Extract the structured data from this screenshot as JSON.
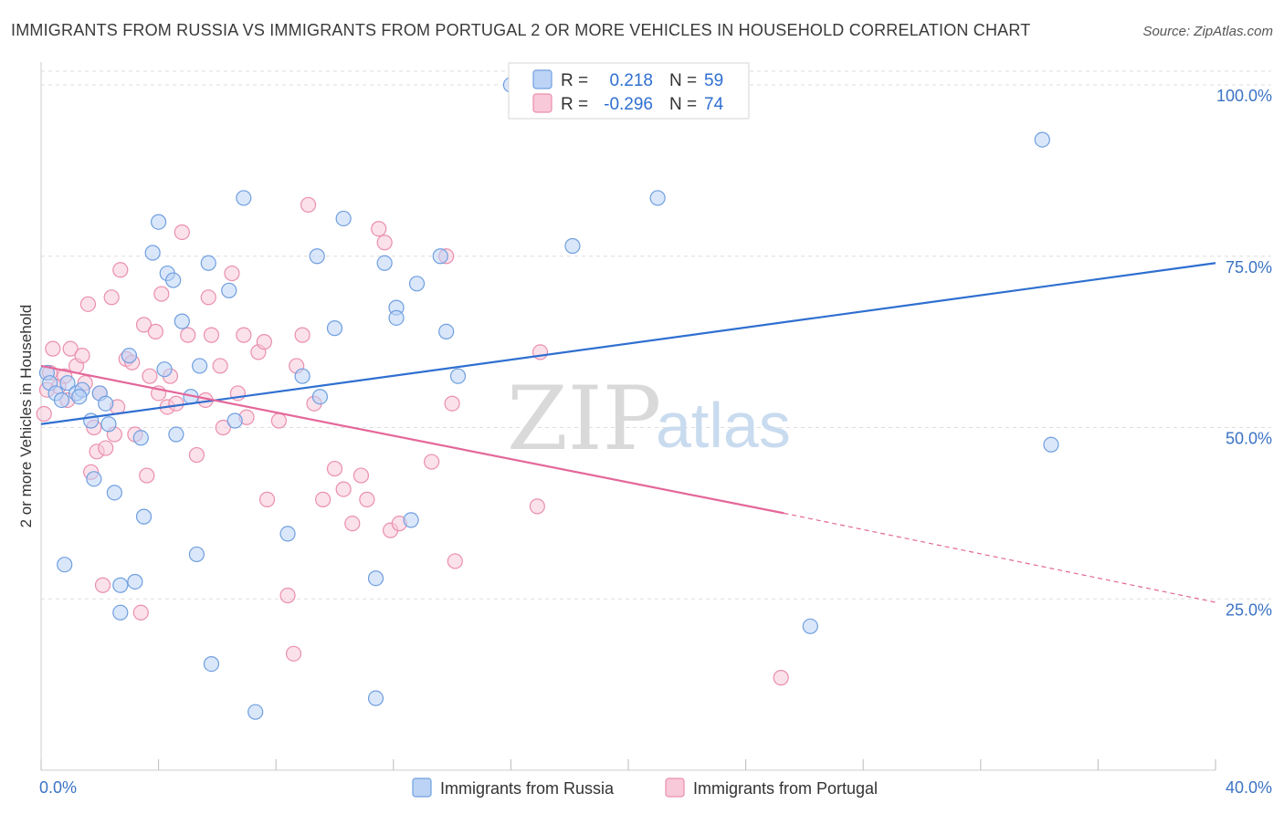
{
  "header": {
    "title": "IMMIGRANTS FROM RUSSIA VS IMMIGRANTS FROM PORTUGAL 2 OR MORE VEHICLES IN HOUSEHOLD CORRELATION CHART",
    "source": "Source: ZipAtlas.com"
  },
  "watermark": {
    "zip": "ZIP",
    "atlas": "atlas"
  },
  "stats": {
    "russia": {
      "r_label": "R =",
      "r_value": "0.218",
      "n_label": "N =",
      "n_value": "59"
    },
    "portugal": {
      "r_label": "R =",
      "r_value": "-0.296",
      "n_label": "N =",
      "n_value": "74"
    }
  },
  "colors": {
    "russia_fill": "#bcd3f5",
    "russia_stroke": "#6f9fe0",
    "russia_line": "#2f6fd0",
    "portugal_fill": "#f8c9d8",
    "portugal_stroke": "#ea8fae",
    "portugal_line": "#e4679a",
    "grid": "#dddddd",
    "axis_text": "#3b73c4"
  },
  "chart_data": {
    "type": "scatter",
    "title": "IMMIGRANTS FROM RUSSIA VS IMMIGRANTS FROM PORTUGAL 2 OR MORE VEHICLES IN HOUSEHOLD CORRELATION CHART",
    "xlabel": "",
    "ylabel": "2 or more Vehicles in Household",
    "xlim": [
      0,
      40
    ],
    "ylim": [
      0,
      102
    ],
    "x_ticks": [
      "0.0%",
      "40.0%"
    ],
    "y_ticks": [
      {
        "value": 100,
        "label": "100.0%"
      },
      {
        "value": 75,
        "label": "75.0%"
      },
      {
        "value": 50,
        "label": "50.0%"
      },
      {
        "value": 25,
        "label": "25.0%"
      }
    ],
    "grid": true,
    "legend_position": "bottom-center",
    "series": [
      {
        "name": "Immigrants from Russia",
        "r": 0.218,
        "n": 59,
        "trend": {
          "x": [
            0,
            40
          ],
          "y": [
            50.5,
            74.0
          ],
          "dashed_from": null
        },
        "points": [
          [
            16.0,
            100.0
          ],
          [
            0.2,
            58.0
          ],
          [
            0.3,
            56.5
          ],
          [
            0.5,
            55.0
          ],
          [
            0.7,
            54.0
          ],
          [
            0.9,
            56.5
          ],
          [
            1.2,
            55.0
          ],
          [
            1.4,
            55.5
          ],
          [
            1.7,
            51.0
          ],
          [
            1.8,
            42.5
          ],
          [
            2.0,
            55.0
          ],
          [
            2.2,
            53.5
          ],
          [
            2.3,
            50.5
          ],
          [
            2.5,
            40.5
          ],
          [
            2.7,
            27.0
          ],
          [
            2.7,
            23.0
          ],
          [
            3.0,
            60.5
          ],
          [
            3.2,
            27.5
          ],
          [
            3.4,
            48.5
          ],
          [
            3.5,
            37.0
          ],
          [
            3.8,
            75.5
          ],
          [
            4.0,
            80.0
          ],
          [
            4.2,
            58.5
          ],
          [
            4.3,
            72.5
          ],
          [
            4.5,
            71.5
          ],
          [
            4.6,
            49.0
          ],
          [
            4.8,
            65.5
          ],
          [
            5.1,
            54.5
          ],
          [
            5.3,
            31.5
          ],
          [
            5.4,
            59.0
          ],
          [
            5.7,
            74.0
          ],
          [
            5.8,
            15.5
          ],
          [
            6.4,
            70.0
          ],
          [
            6.6,
            51.0
          ],
          [
            6.9,
            83.5
          ],
          [
            7.3,
            8.5
          ],
          [
            8.4,
            34.5
          ],
          [
            8.9,
            57.5
          ],
          [
            9.4,
            75.0
          ],
          [
            9.5,
            54.5
          ],
          [
            10.0,
            64.5
          ],
          [
            10.3,
            80.5
          ],
          [
            11.4,
            28.0
          ],
          [
            11.4,
            10.5
          ],
          [
            11.7,
            74.0
          ],
          [
            12.1,
            67.5
          ],
          [
            12.1,
            66.0
          ],
          [
            12.6,
            36.5
          ],
          [
            12.8,
            71.0
          ],
          [
            13.6,
            75.0
          ],
          [
            13.8,
            64.0
          ],
          [
            14.2,
            57.5
          ],
          [
            18.1,
            76.5
          ],
          [
            21.0,
            83.5
          ],
          [
            26.2,
            21.0
          ],
          [
            34.1,
            92.0
          ],
          [
            34.4,
            47.5
          ],
          [
            0.8,
            30.0
          ],
          [
            1.3,
            54.5
          ]
        ]
      },
      {
        "name": "Immigrants from Portugal",
        "r": -0.296,
        "n": 74,
        "trend": {
          "x": [
            0,
            25.3,
            40
          ],
          "y": [
            59.0,
            37.5,
            24.5
          ],
          "dashed_from": 25.3
        },
        "points": [
          [
            0.1,
            52.0
          ],
          [
            0.3,
            58.0
          ],
          [
            0.4,
            61.5
          ],
          [
            0.6,
            56.0
          ],
          [
            0.8,
            57.5
          ],
          [
            0.9,
            54.0
          ],
          [
            1.0,
            61.5
          ],
          [
            1.2,
            59.0
          ],
          [
            1.4,
            60.5
          ],
          [
            1.5,
            56.5
          ],
          [
            1.6,
            68.0
          ],
          [
            1.7,
            43.5
          ],
          [
            1.8,
            50.0
          ],
          [
            1.9,
            46.5
          ],
          [
            2.1,
            27.0
          ],
          [
            2.2,
            47.0
          ],
          [
            2.4,
            69.0
          ],
          [
            2.5,
            49.0
          ],
          [
            2.6,
            53.0
          ],
          [
            2.7,
            73.0
          ],
          [
            2.9,
            60.0
          ],
          [
            3.2,
            49.0
          ],
          [
            3.4,
            23.0
          ],
          [
            3.5,
            65.0
          ],
          [
            3.6,
            43.0
          ],
          [
            3.7,
            57.5
          ],
          [
            3.9,
            64.0
          ],
          [
            4.0,
            55.0
          ],
          [
            4.1,
            69.5
          ],
          [
            4.3,
            53.0
          ],
          [
            4.4,
            57.5
          ],
          [
            4.6,
            53.5
          ],
          [
            4.8,
            78.5
          ],
          [
            5.0,
            63.5
          ],
          [
            5.3,
            46.0
          ],
          [
            5.6,
            54.0
          ],
          [
            5.7,
            69.0
          ],
          [
            5.8,
            63.5
          ],
          [
            6.1,
            59.0
          ],
          [
            6.2,
            50.0
          ],
          [
            6.5,
            72.5
          ],
          [
            6.7,
            55.0
          ],
          [
            6.9,
            63.5
          ],
          [
            7.0,
            51.5
          ],
          [
            7.4,
            61.0
          ],
          [
            7.6,
            62.5
          ],
          [
            7.7,
            39.5
          ],
          [
            8.1,
            51.0
          ],
          [
            8.4,
            25.5
          ],
          [
            8.6,
            17.0
          ],
          [
            8.7,
            59.0
          ],
          [
            8.9,
            63.5
          ],
          [
            9.1,
            82.5
          ],
          [
            9.3,
            53.5
          ],
          [
            9.6,
            39.5
          ],
          [
            10.0,
            44.0
          ],
          [
            10.3,
            41.0
          ],
          [
            10.6,
            36.0
          ],
          [
            10.9,
            43.0
          ],
          [
            11.1,
            39.5
          ],
          [
            11.5,
            79.0
          ],
          [
            11.7,
            77.0
          ],
          [
            11.9,
            35.0
          ],
          [
            12.2,
            36.0
          ],
          [
            13.3,
            45.0
          ],
          [
            13.8,
            75.0
          ],
          [
            14.0,
            53.5
          ],
          [
            14.1,
            30.5
          ],
          [
            16.9,
            38.5
          ],
          [
            17.0,
            61.0
          ],
          [
            25.2,
            13.5
          ],
          [
            0.2,
            55.5
          ],
          [
            2.0,
            55.0
          ],
          [
            3.1,
            59.5
          ]
        ]
      }
    ]
  },
  "legend": {
    "items": [
      {
        "label": "Immigrants from Russia"
      },
      {
        "label": "Immigrants from Portugal"
      }
    ]
  }
}
